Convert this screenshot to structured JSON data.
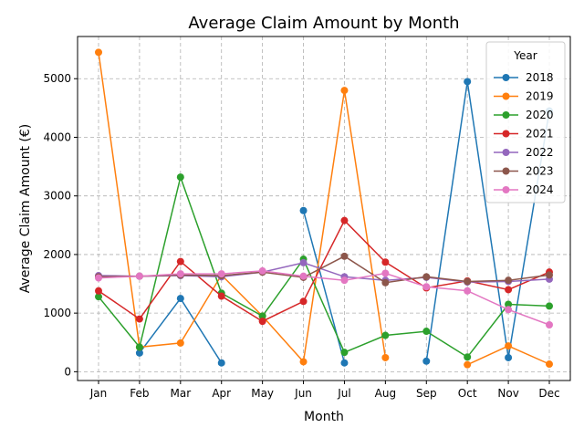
{
  "chart_data": {
    "type": "line",
    "title": "Average Claim Amount by Month",
    "xlabel": "Month",
    "ylabel": "Average Claim Amount (€)",
    "categories": [
      "Jan",
      "Feb",
      "Mar",
      "Apr",
      "May",
      "Jun",
      "Jul",
      "Aug",
      "Sep",
      "Oct",
      "Nov",
      "Dec"
    ],
    "ylim": [
      -150,
      5720
    ],
    "yticks": [
      0,
      1000,
      2000,
      3000,
      4000,
      5000
    ],
    "grid": true,
    "legend": {
      "title": "Year",
      "placement": "top-right"
    },
    "series": [
      {
        "name": "2018",
        "color": "#1f77b4",
        "values": [
          null,
          320,
          1250,
          150,
          null,
          2750,
          150,
          null,
          180,
          4950,
          240,
          4450
        ]
      },
      {
        "name": "2019",
        "color": "#ff7f0e",
        "values": [
          5450,
          420,
          490,
          1650,
          950,
          170,
          4800,
          240,
          null,
          120,
          440,
          130
        ]
      },
      {
        "name": "2020",
        "color": "#2ca02c",
        "values": [
          1280,
          420,
          3320,
          1340,
          950,
          1920,
          330,
          620,
          690,
          250,
          1150,
          1120
        ]
      },
      {
        "name": "2021",
        "color": "#d62728",
        "values": [
          1380,
          900,
          1880,
          1290,
          860,
          1200,
          2580,
          1870,
          1430,
          1550,
          1400,
          1700
        ]
      },
      {
        "name": "2022",
        "color": "#9467bd",
        "values": [
          1640,
          1630,
          1640,
          1620,
          1700,
          1860,
          1620,
          1560,
          1610,
          1530,
          1540,
          1580
        ]
      },
      {
        "name": "2023",
        "color": "#8c564b",
        "values": [
          1620,
          1630,
          1650,
          1640,
          1700,
          1610,
          1970,
          1520,
          1620,
          1540,
          1560,
          1650
        ]
      },
      {
        "name": "2024",
        "color": "#e377c2",
        "values": [
          1600,
          1630,
          1670,
          1670,
          1720,
          1630,
          1560,
          1680,
          1450,
          1380,
          1060,
          800
        ]
      }
    ]
  }
}
